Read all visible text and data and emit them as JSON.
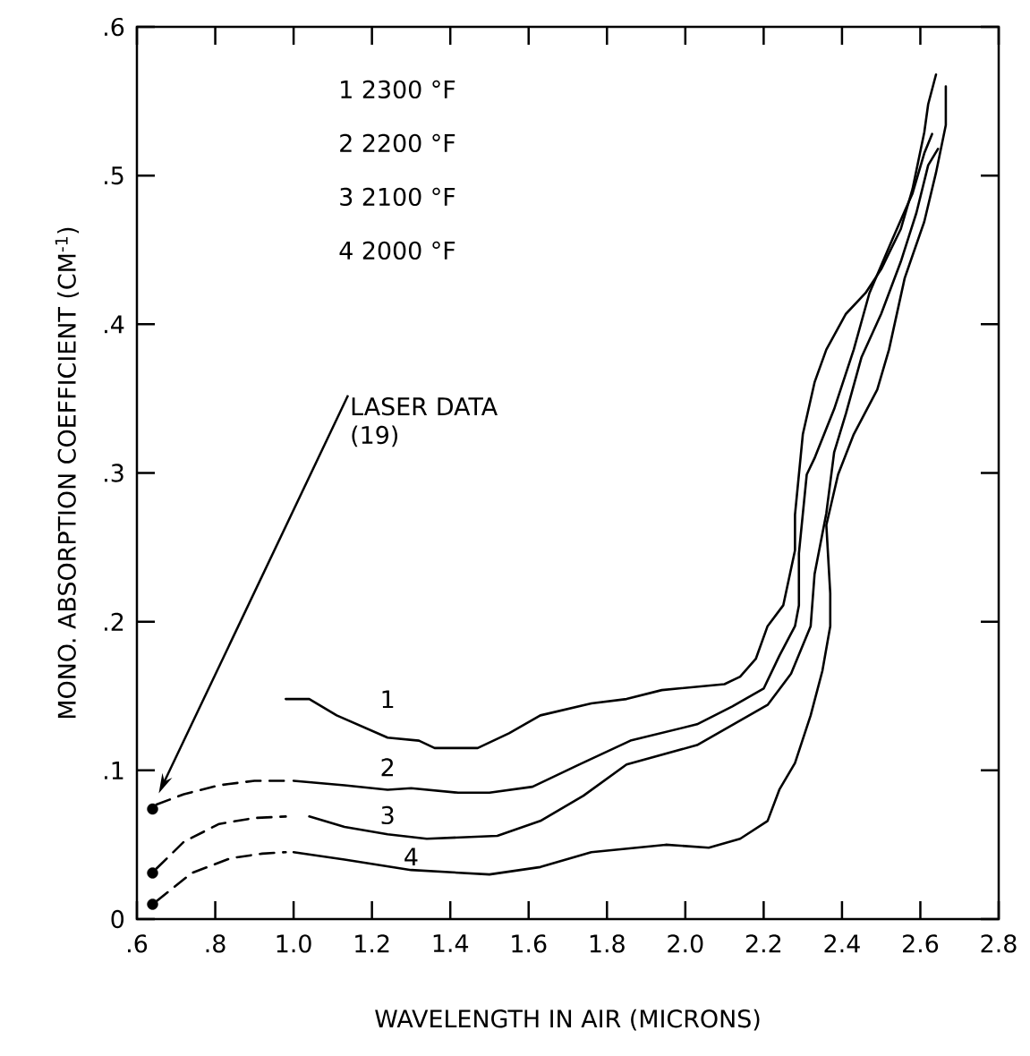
{
  "chart_data": {
    "type": "line",
    "xlabel": "WAVELENGTH IN AIR (MICRONS)",
    "ylabel": "MONO. ABSORPTION COEFFICIENT (CM$^{-1}$)",
    "xlim": [
      0.6,
      2.8
    ],
    "xticks": [
      {
        "value": 0.6,
        "label": ".6"
      },
      {
        "value": 0.8,
        "label": ".8"
      },
      {
        "value": 1.0,
        "label": "1.0"
      },
      {
        "value": 1.2,
        "label": "1.2"
      },
      {
        "value": 1.4,
        "label": "1.4"
      },
      {
        "value": 1.6,
        "label": "1.6"
      },
      {
        "value": 1.8,
        "label": "1.8"
      },
      {
        "value": 2.0,
        "label": "2.0"
      },
      {
        "value": 2.2,
        "label": "2.2"
      },
      {
        "value": 2.4,
        "label": "2.4"
      },
      {
        "value": 2.6,
        "label": "2.6"
      },
      {
        "value": 2.8,
        "label": "2.8"
      }
    ],
    "ylim": [
      0,
      0.6
    ],
    "yticks": [
      0,
      {
        "value": 0.1,
        "label": ".1"
      },
      {
        "value": 0.2,
        "label": ".2"
      },
      {
        "value": 0.3,
        "label": ".3"
      },
      {
        "value": 0.4,
        "label": ".4"
      },
      {
        "value": 0.5,
        "label": ".5"
      },
      {
        "value": 0.6,
        "label": ".6"
      }
    ],
    "series": [
      {
        "name": "1",
        "color": "#000000",
        "line_style": "solid",
        "x": [
          0.98,
          1.04,
          1.11,
          1.24,
          1.32,
          1.36,
          1.47,
          1.55,
          1.63,
          1.76,
          1.85,
          1.94,
          2.1,
          2.14,
          2.18,
          2.21,
          2.25,
          2.28,
          2.28,
          2.3,
          2.33,
          2.36,
          2.41,
          2.46,
          2.5,
          2.55,
          2.58,
          2.61,
          2.62,
          2.64
        ],
        "values": [
          0.148,
          0.148,
          0.137,
          0.122,
          0.12,
          0.115,
          0.115,
          0.125,
          0.137,
          0.145,
          0.148,
          0.154,
          0.158,
          0.163,
          0.175,
          0.197,
          0.211,
          0.248,
          0.272,
          0.326,
          0.361,
          0.383,
          0.407,
          0.421,
          0.437,
          0.464,
          0.491,
          0.529,
          0.548,
          0.568
        ]
      },
      {
        "name": "2",
        "color": "#000000",
        "line_style": "solid",
        "x": [
          1.0,
          1.13,
          1.24,
          1.3,
          1.42,
          1.5,
          1.61,
          1.73,
          1.86,
          2.03,
          2.12,
          2.2,
          2.24,
          2.28,
          2.29,
          2.29,
          2.31,
          2.33,
          2.38,
          2.43,
          2.47,
          2.53,
          2.58,
          2.61,
          2.63
        ],
        "values": [
          0.093,
          0.09,
          0.087,
          0.088,
          0.085,
          0.085,
          0.089,
          0.104,
          0.12,
          0.131,
          0.143,
          0.155,
          0.177,
          0.197,
          0.211,
          0.246,
          0.299,
          0.31,
          0.343,
          0.383,
          0.421,
          0.458,
          0.488,
          0.515,
          0.528
        ]
      },
      {
        "name": "3",
        "color": "#000000",
        "line_style": "solid",
        "x": [
          1.04,
          1.13,
          1.24,
          1.34,
          1.52,
          1.63,
          1.74,
          1.85,
          2.03,
          2.21,
          2.27,
          2.32,
          2.33,
          2.36,
          2.38,
          2.41,
          2.45,
          2.5,
          2.55,
          2.59,
          2.62,
          2.645
        ],
        "values": [
          0.069,
          0.062,
          0.057,
          0.054,
          0.056,
          0.066,
          0.083,
          0.104,
          0.117,
          0.144,
          0.165,
          0.197,
          0.232,
          0.273,
          0.314,
          0.34,
          0.378,
          0.407,
          0.442,
          0.475,
          0.507,
          0.518
        ]
      },
      {
        "name": "4",
        "color": "#000000",
        "line_style": "solid",
        "x": [
          1.0,
          1.13,
          1.3,
          1.5,
          1.63,
          1.76,
          1.95,
          2.06,
          2.14,
          2.21,
          2.24,
          2.28,
          2.32,
          2.35,
          2.37,
          2.37,
          2.36,
          2.39,
          2.43,
          2.49,
          2.52,
          2.56,
          2.61,
          2.64,
          2.665,
          2.665
        ],
        "values": [
          0.045,
          0.04,
          0.033,
          0.03,
          0.035,
          0.045,
          0.05,
          0.048,
          0.054,
          0.066,
          0.087,
          0.105,
          0.137,
          0.167,
          0.197,
          0.219,
          0.265,
          0.299,
          0.326,
          0.356,
          0.383,
          0.431,
          0.469,
          0.502,
          0.534,
          0.56
        ]
      },
      {
        "color": "#000000",
        "line_style": "dashed",
        "x": [
          0.65,
          0.72,
          0.81,
          0.9,
          0.99
        ],
        "values": [
          0.077,
          0.084,
          0.09,
          0.093,
          0.093
        ]
      },
      {
        "color": "#000000",
        "line_style": "dashed",
        "x": [
          0.65,
          0.72,
          0.81,
          0.9,
          0.98
        ],
        "values": [
          0.034,
          0.052,
          0.064,
          0.068,
          0.069
        ]
      },
      {
        "color": "#000000",
        "line_style": "dashed",
        "x": [
          0.65,
          0.74,
          0.84,
          0.92,
          0.98
        ],
        "values": [
          0.012,
          0.031,
          0.041,
          0.044,
          0.045
        ]
      },
      {
        "type": "scatter",
        "marker": "circle",
        "color": "#000000",
        "x": [
          0.64,
          0.64,
          0.64
        ],
        "values": [
          0.074,
          0.031,
          0.01
        ]
      }
    ],
    "annotations": [
      "1 2300 °F",
      "2 2200 °F",
      "3 2100 °F",
      "4 2000 °F",
      "LASER DATA (19)"
    ]
  }
}
